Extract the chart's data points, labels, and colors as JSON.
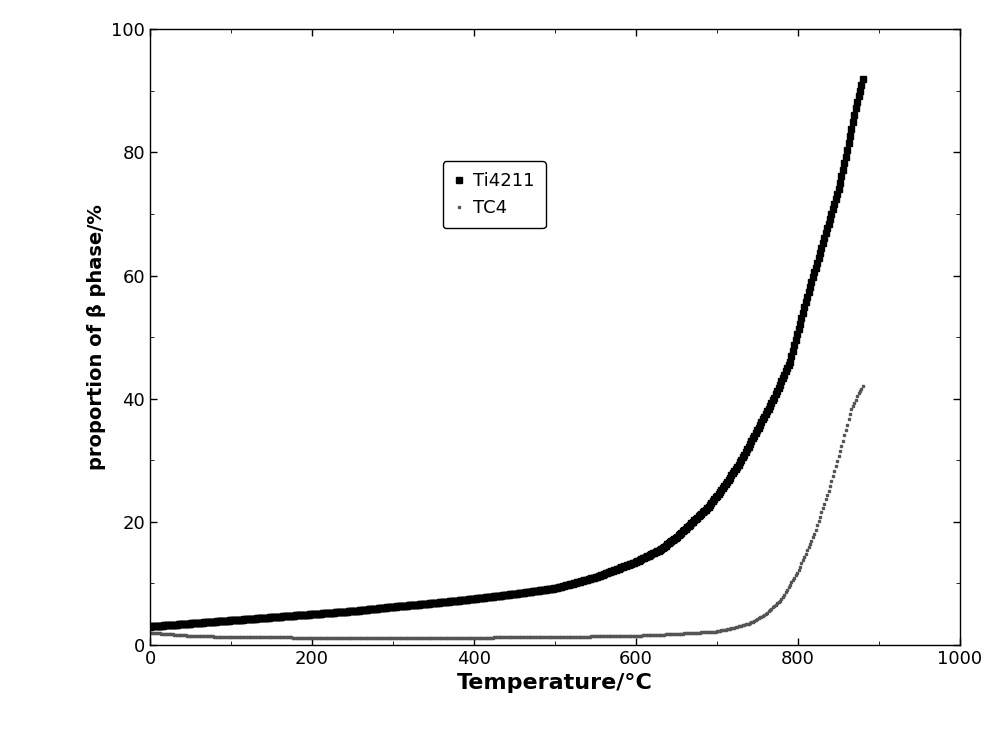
{
  "title": "",
  "xlabel": "Temperature/°C",
  "ylabel": "proportion of β phase/%",
  "xlim": [
    0,
    1000
  ],
  "ylim": [
    0,
    100
  ],
  "xticks": [
    0,
    200,
    400,
    600,
    800,
    1000
  ],
  "yticks": [
    0,
    20,
    40,
    60,
    80,
    100
  ],
  "legend_labels": [
    "Ti4211",
    "TC4"
  ],
  "ti4211_color": "#000000",
  "tc4_color": "#555555",
  "background_color": "#ffffff",
  "marker_size_ti4211": 4,
  "marker_size_tc4": 2,
  "ti4211_keyT": [
    0,
    20,
    50,
    100,
    150,
    200,
    250,
    300,
    350,
    400,
    450,
    500,
    550,
    600,
    630,
    650,
    670,
    690,
    710,
    730,
    750,
    770,
    790,
    810,
    830,
    850,
    860,
    870,
    880
  ],
  "ti4211_keyY": [
    3.0,
    3.2,
    3.5,
    4.0,
    4.5,
    5.0,
    5.5,
    6.2,
    6.8,
    7.5,
    8.3,
    9.2,
    11.0,
    13.5,
    15.5,
    17.5,
    20.0,
    22.5,
    26.0,
    30.0,
    35.0,
    40.0,
    46.0,
    56.0,
    65.0,
    74.0,
    80.0,
    86.5,
    92.0
  ],
  "tc4_keyT": [
    0,
    50,
    100,
    200,
    300,
    400,
    500,
    600,
    650,
    700,
    720,
    740,
    760,
    780,
    800,
    820,
    840,
    855,
    865,
    875,
    880
  ],
  "tc4_keyY": [
    2.0,
    1.5,
    1.3,
    1.2,
    1.2,
    1.2,
    1.3,
    1.5,
    1.8,
    2.2,
    2.8,
    3.5,
    5.0,
    7.5,
    12.0,
    18.0,
    26.0,
    33.0,
    38.0,
    41.0,
    42.0
  ],
  "n_points": 500
}
